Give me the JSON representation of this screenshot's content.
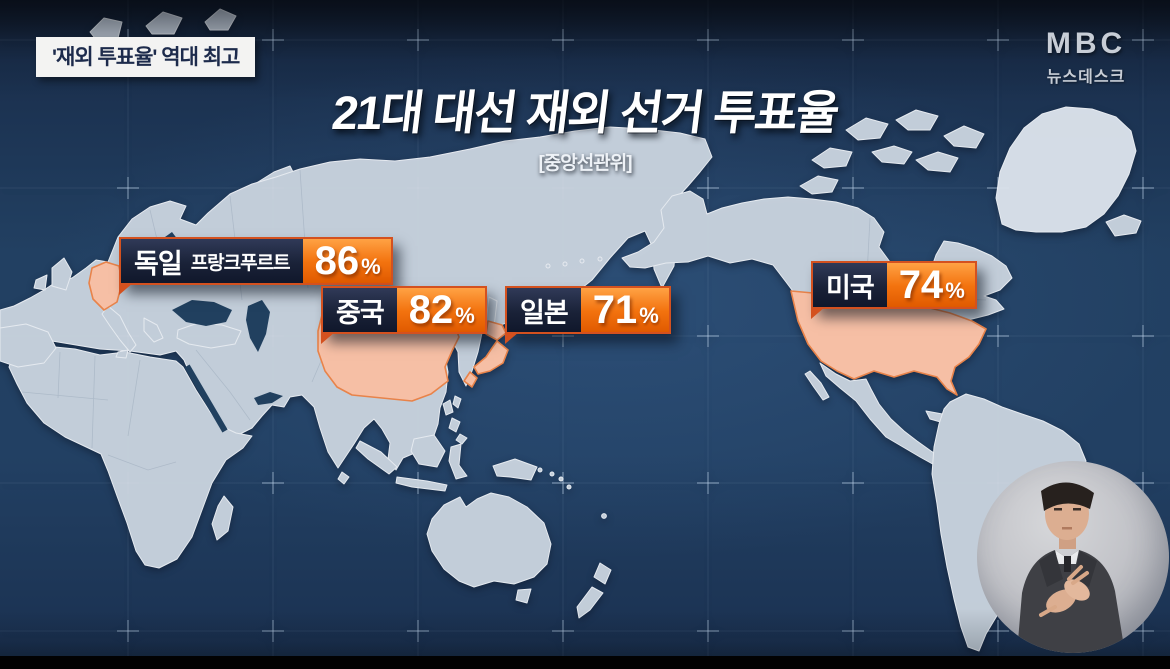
{
  "badge": {
    "text": "'재외 투표율' 역대 최고"
  },
  "title": {
    "text": "21대 대선 재외 선거 투표율",
    "source": "[중앙선관위]"
  },
  "broadcaster": {
    "logo": "MBC",
    "program": "뉴스데스크"
  },
  "map": {
    "type": "world-map-infographic",
    "highlighted_countries": [
      "독일",
      "중국",
      "일본",
      "미국"
    ],
    "labels": [
      {
        "country": "독일",
        "city": "프랑크푸르트",
        "value": "86",
        "unit": "%"
      },
      {
        "country": "중국",
        "city": "",
        "value": "82",
        "unit": "%"
      },
      {
        "country": "일본",
        "city": "",
        "value": "71",
        "unit": "%"
      },
      {
        "country": "미국",
        "city": "",
        "value": "74",
        "unit": "%"
      }
    ],
    "colors": {
      "ocean": "#21405f",
      "land": "#c9d3de",
      "highlight": "#f6bfa5",
      "label_orange": "#f3730f",
      "label_navy": "#1a2238"
    }
  },
  "chart_data": {
    "type": "table",
    "title": "21대 대선 재외 선거 투표율",
    "source": "[중앙선관위]",
    "categories": [
      "독일 프랑크푸르트",
      "중국",
      "일본",
      "미국"
    ],
    "values": [
      86,
      82,
      71,
      74
    ],
    "unit": "%"
  }
}
